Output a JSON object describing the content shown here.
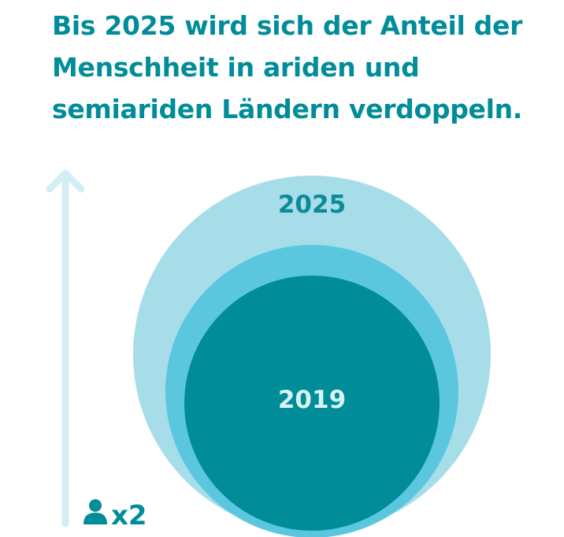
{
  "headline": {
    "line1": "Bis 2025 wird sich der Anteil der",
    "line2": "Menschheit in ariden und",
    "line3": "semiariden Ländern verdoppeln."
  },
  "circles": {
    "outer_label": "2025",
    "inner_label": "2019"
  },
  "multiplier": {
    "icon": "person-icon",
    "text": "x2"
  },
  "colors": {
    "headline": "#008d99",
    "outer_circle": "#a6dde9",
    "middle_circle": "#5ac7de",
    "inner_circle": "#008d99",
    "arrow": "#d3eef4",
    "label_outer": "#0d8a99",
    "label_inner": "#d8f3f6"
  }
}
